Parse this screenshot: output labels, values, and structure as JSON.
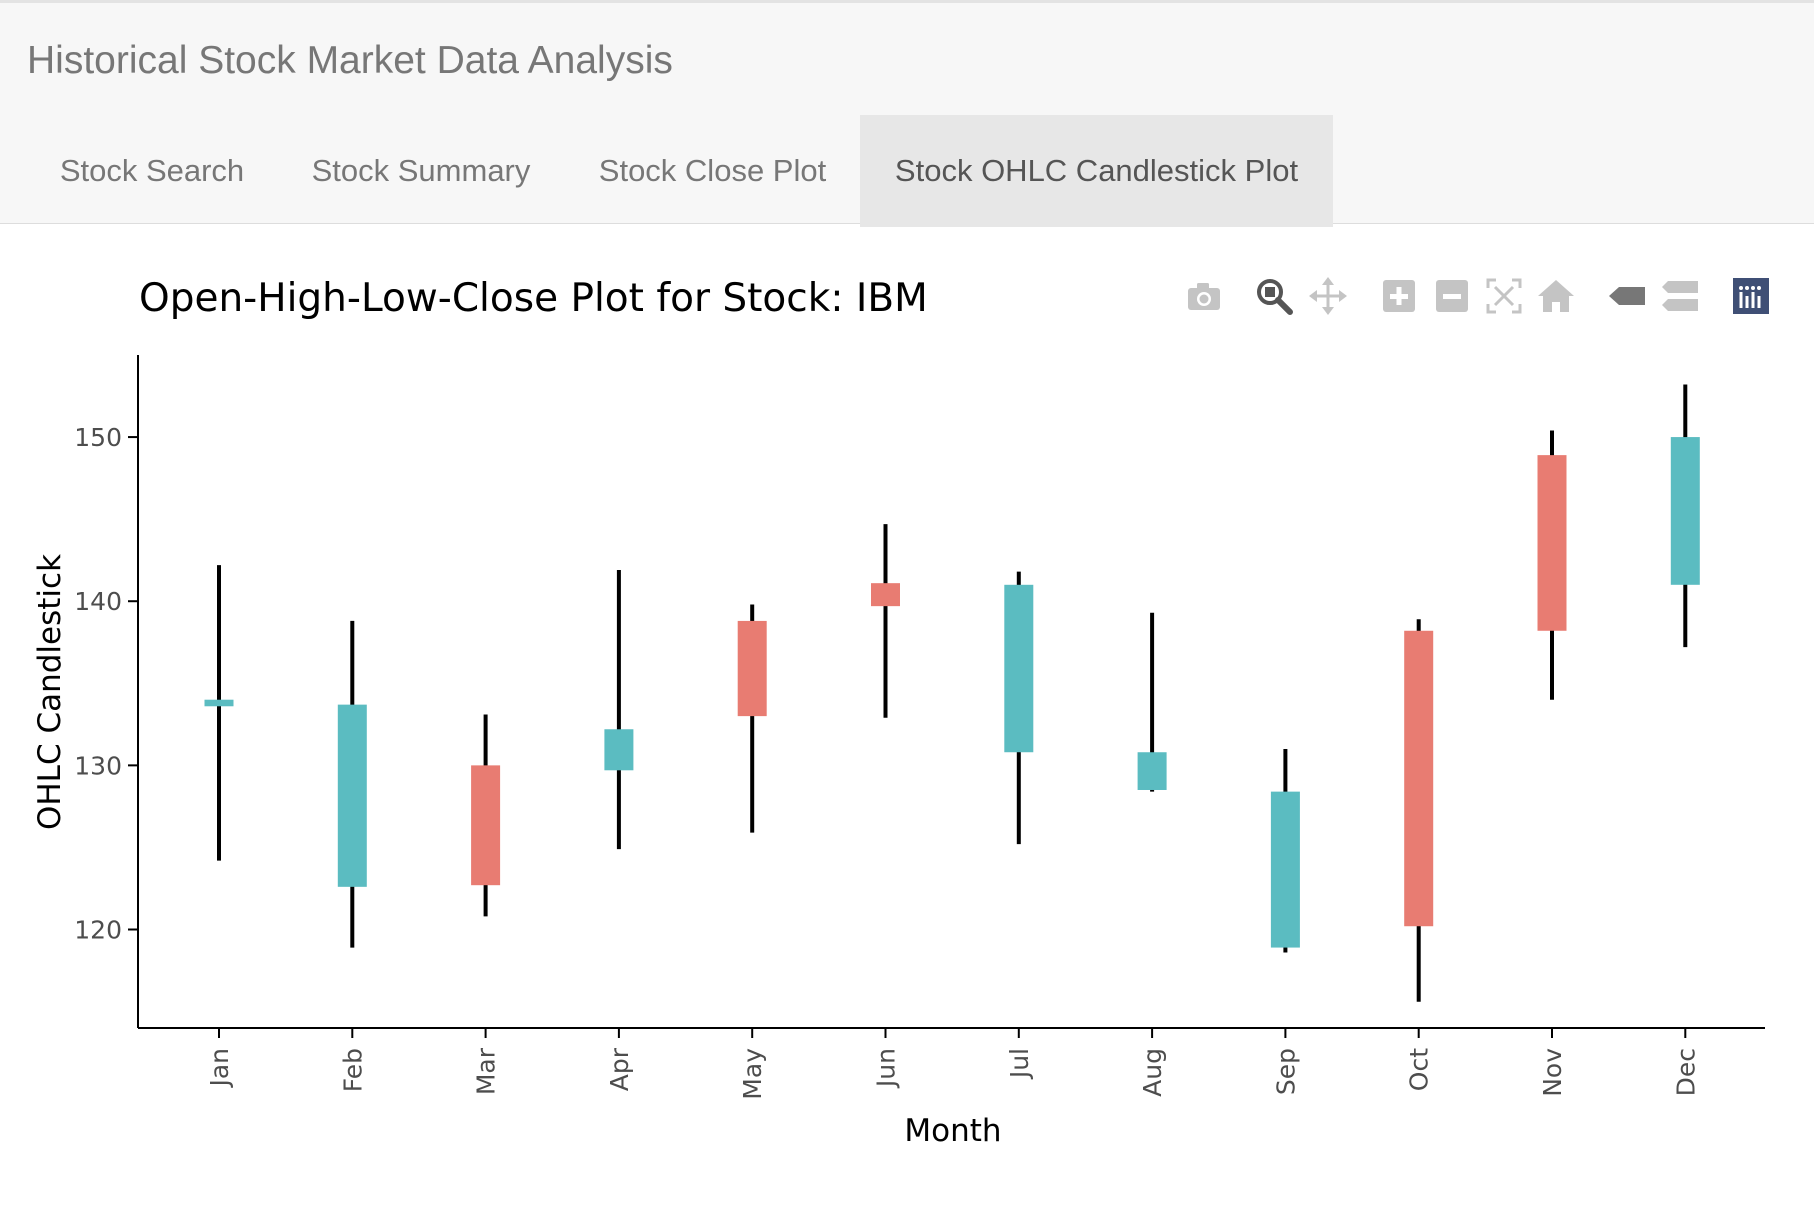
{
  "app": {
    "title": "Historical Stock Market Data Analysis"
  },
  "tabs": [
    {
      "label": "Stock Search",
      "active": false
    },
    {
      "label": "Stock Summary",
      "active": false
    },
    {
      "label": "Stock Close Plot",
      "active": false
    },
    {
      "label": "Stock OHLC Candlestick Plot",
      "active": true
    }
  ],
  "modebar": [
    {
      "icon": "camera-icon",
      "name": "download-plot-button"
    },
    {
      "icon": "zoom-icon",
      "name": "zoom-button",
      "active": true
    },
    {
      "icon": "pan-icon",
      "name": "pan-button"
    },
    {
      "icon": "zoom-in-icon",
      "name": "zoom-in-button"
    },
    {
      "icon": "zoom-out-icon",
      "name": "zoom-out-button"
    },
    {
      "icon": "autoscale-icon",
      "name": "autoscale-button"
    },
    {
      "icon": "home-icon",
      "name": "reset-axes-button"
    },
    {
      "icon": "hover-closest-icon",
      "name": "hover-closest-button"
    },
    {
      "icon": "hover-compare-icon",
      "name": "hover-compare-button"
    },
    {
      "icon": "plotly-logo-icon",
      "name": "plotly-logo-link"
    }
  ],
  "chart_data": {
    "type": "candlestick",
    "title": "Open-High-Low-Close Plot for Stock: IBM",
    "xlabel": "Month",
    "ylabel": "OHLC Candlestick",
    "ylim": [
      114,
      155
    ],
    "yticks": [
      120,
      130,
      140,
      150
    ],
    "grid": false,
    "categories": [
      "Jan",
      "Feb",
      "Mar",
      "Apr",
      "May",
      "Jun",
      "Jul",
      "Aug",
      "Sep",
      "Oct",
      "Nov",
      "Dec"
    ],
    "series": [
      {
        "open": [
          133.6,
          122.6,
          130.0,
          129.7,
          138.8,
          141.1,
          130.8,
          128.5,
          118.9,
          138.2,
          148.9,
          141.0
        ],
        "high": [
          142.2,
          138.8,
          133.1,
          141.9,
          139.8,
          144.7,
          141.8,
          139.3,
          131.0,
          138.9,
          150.4,
          153.2
        ],
        "low": [
          124.2,
          118.9,
          120.8,
          124.9,
          125.9,
          132.9,
          125.2,
          128.4,
          118.6,
          115.6,
          134.0,
          137.2
        ],
        "close": [
          134.0,
          133.7,
          122.7,
          132.2,
          133.0,
          139.7,
          141.0,
          130.8,
          128.4,
          120.2,
          138.2,
          150.0
        ]
      }
    ],
    "colors": {
      "increasing": "#5bbcc1",
      "decreasing": "#e87c72",
      "wick": "#000000"
    }
  }
}
